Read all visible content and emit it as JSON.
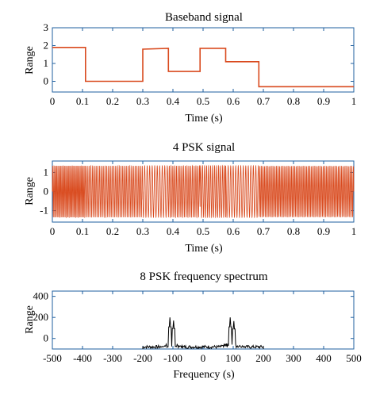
{
  "accent_color": "#1f5f9f",
  "chart_data": [
    {
      "type": "line",
      "title": "Baseband signal",
      "xlabel": "Time (s)",
      "ylabel": "Range",
      "xlim": [
        0,
        1
      ],
      "ylim": [
        -0.6,
        3
      ],
      "x_ticks": [
        "0",
        "0.1",
        "0.2",
        "0.3",
        "0.4",
        "0.5",
        "0.6",
        "0.7",
        "0.8",
        "0.9",
        "1"
      ],
      "y_ticks": [
        "0",
        "1",
        "2",
        "3"
      ],
      "color": "#d94a1e",
      "series": [
        {
          "x": [
            0,
            0.11,
            0.11,
            0.3,
            0.3,
            0.385,
            0.385,
            0.49,
            0.49,
            0.575,
            0.575,
            0.685,
            0.685,
            1.0
          ],
          "y": [
            1.9,
            1.9,
            0.0,
            0.0,
            1.8,
            1.85,
            0.55,
            0.55,
            1.85,
            1.85,
            1.1,
            1.1,
            -0.3,
            -0.3
          ]
        }
      ]
    },
    {
      "type": "line",
      "title": "4 PSK signal",
      "xlabel": "Time (s)",
      "ylabel": "Range",
      "xlim": [
        0,
        1
      ],
      "ylim": [
        -1.6,
        1.6
      ],
      "x_ticks": [
        "0",
        "0.1",
        "0.2",
        "0.3",
        "0.4",
        "0.5",
        "0.6",
        "0.7",
        "0.8",
        "0.9",
        "1"
      ],
      "y_ticks": [
        "-1",
        "0",
        "1"
      ],
      "color": "#d94a1e",
      "amplitude": 1.35,
      "segments": [
        {
          "start": 0.0,
          "end": 0.11,
          "cycles_per_unit": 230
        },
        {
          "start": 0.11,
          "end": 0.3,
          "cycles_per_unit": 170
        },
        {
          "start": 0.3,
          "end": 0.385,
          "cycles_per_unit": 120
        },
        {
          "start": 0.385,
          "end": 0.49,
          "cycles_per_unit": 170
        },
        {
          "start": 0.49,
          "end": 0.575,
          "cycles_per_unit": 150
        },
        {
          "start": 0.575,
          "end": 0.685,
          "cycles_per_unit": 120
        },
        {
          "start": 0.685,
          "end": 1.0,
          "cycles_per_unit": 200
        }
      ]
    },
    {
      "type": "line",
      "title": "8 PSK frequency spectrum",
      "xlabel": "Frequency (s)",
      "ylabel": "Range",
      "xlim": [
        -500,
        500
      ],
      "ylim": [
        -100,
        450
      ],
      "x_ticks": [
        "-500",
        "-400",
        "-300",
        "-200",
        "-100",
        "0",
        "100",
        "200",
        "300",
        "400",
        "500"
      ],
      "y_ticks": [
        "0",
        "200",
        "400"
      ],
      "color": "#000000",
      "peaks": [
        {
          "x": -110,
          "y": 200
        },
        {
          "x": -98,
          "y": 170
        },
        {
          "x": 90,
          "y": 200
        },
        {
          "x": 102,
          "y": 165
        }
      ],
      "support": [
        -200,
        200
      ],
      "baseline": -100
    }
  ]
}
